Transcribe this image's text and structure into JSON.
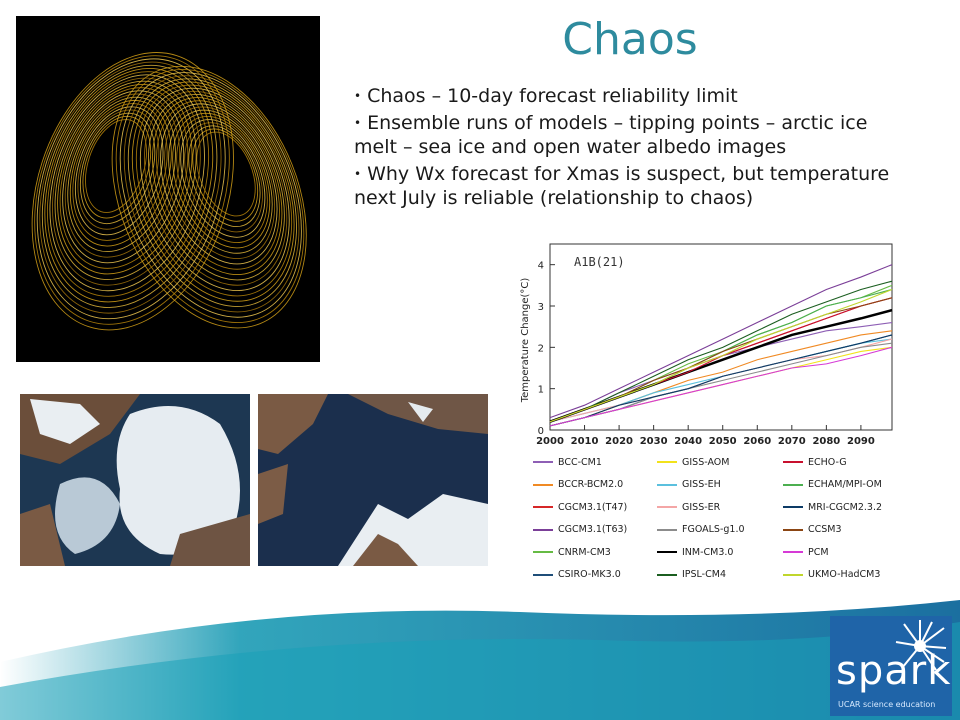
{
  "slide": {
    "title": "Chaos",
    "bullets": [
      "Chaos – 10-day forecast reliability limit",
      "Ensemble runs of models – tipping points – arctic ice melt – sea ice and open water albedo images",
      "Why Wx forecast for Xmas is suspect, but temperature next July is reliable (relationship to chaos)"
    ]
  },
  "chart_data": {
    "type": "line",
    "title": "A1B(21)",
    "xlabel": "",
    "ylabel": "Temperature Change(°C)",
    "xlim": [
      2000,
      2099
    ],
    "ylim": [
      0,
      4.5
    ],
    "x_ticks": [
      "2000",
      "2010",
      "2020",
      "2030",
      "2040",
      "2050",
      "2060",
      "2070",
      "2080",
      "2090"
    ],
    "y_ticks": [
      "0",
      "1",
      "2",
      "3",
      "4"
    ],
    "x": [
      2000,
      2010,
      2020,
      2030,
      2040,
      2050,
      2060,
      2070,
      2080,
      2090,
      2099
    ],
    "series": [
      {
        "name": "BCC-CM1",
        "color": "#8e5fb5",
        "values": [
          0.2,
          0.5,
          0.9,
          1.2,
          1.5,
          1.8,
          2.0,
          2.2,
          2.4,
          2.5,
          2.6
        ]
      },
      {
        "name": "BCCR-BCM2.0",
        "color": "#f08a24",
        "values": [
          0.1,
          0.3,
          0.6,
          0.9,
          1.2,
          1.4,
          1.7,
          1.9,
          2.1,
          2.3,
          2.4
        ]
      },
      {
        "name": "CGCM3.1(T47)",
        "color": "#d62728",
        "values": [
          0.2,
          0.5,
          0.8,
          1.1,
          1.5,
          1.8,
          2.1,
          2.4,
          2.7,
          3.0,
          3.2
        ]
      },
      {
        "name": "CGCM3.1(T63)",
        "color": "#7b3f98",
        "values": [
          0.3,
          0.6,
          1.0,
          1.4,
          1.8,
          2.2,
          2.6,
          3.0,
          3.4,
          3.7,
          4.0
        ]
      },
      {
        "name": "CNRM-CM3",
        "color": "#66bb44",
        "values": [
          0.2,
          0.5,
          0.8,
          1.2,
          1.6,
          1.9,
          2.3,
          2.6,
          3.0,
          3.2,
          3.5
        ]
      },
      {
        "name": "CSIRO-MK3.0",
        "color": "#1f4e79",
        "values": [
          0.1,
          0.3,
          0.5,
          0.8,
          1.0,
          1.3,
          1.5,
          1.7,
          1.9,
          2.1,
          2.3
        ]
      },
      {
        "name": "GISS-AOM",
        "color": "#f2e21b",
        "values": [
          0.1,
          0.3,
          0.5,
          0.7,
          0.9,
          1.1,
          1.3,
          1.5,
          1.7,
          1.9,
          2.0
        ]
      },
      {
        "name": "GISS-EH",
        "color": "#5bc0de",
        "values": [
          0.2,
          0.4,
          0.6,
          0.9,
          1.1,
          1.3,
          1.5,
          1.7,
          1.9,
          2.1,
          2.2
        ]
      },
      {
        "name": "GISS-ER",
        "color": "#f4a6a6",
        "values": [
          0.2,
          0.4,
          0.6,
          0.8,
          1.0,
          1.3,
          1.5,
          1.7,
          1.8,
          2.0,
          2.2
        ]
      },
      {
        "name": "FGOALS-g1.0",
        "color": "#8c8c8c",
        "values": [
          0.1,
          0.3,
          0.5,
          0.8,
          1.0,
          1.2,
          1.4,
          1.6,
          1.8,
          2.0,
          2.1
        ]
      },
      {
        "name": "INM-CM3.0",
        "color": "#000000",
        "values": [
          0.2,
          0.5,
          0.8,
          1.1,
          1.4,
          1.7,
          2.0,
          2.3,
          2.5,
          2.7,
          2.9
        ]
      },
      {
        "name": "IPSL-CM4",
        "color": "#1b5e20",
        "values": [
          0.2,
          0.5,
          0.9,
          1.3,
          1.7,
          2.0,
          2.4,
          2.8,
          3.1,
          3.4,
          3.6
        ]
      },
      {
        "name": "ECHO-G",
        "color": "#c8102e",
        "values": [
          0.2,
          0.5,
          0.8,
          1.1,
          1.4,
          1.8,
          2.1,
          2.4,
          2.7,
          3.0,
          3.2
        ]
      },
      {
        "name": "ECHAM/MPI-OM",
        "color": "#4caf50",
        "values": [
          0.2,
          0.5,
          0.8,
          1.1,
          1.5,
          1.9,
          2.3,
          2.6,
          3.0,
          3.2,
          3.4
        ]
      },
      {
        "name": "MRI-CGCM2.3.2",
        "color": "#0d3b66",
        "values": [
          0.1,
          0.3,
          0.6,
          0.8,
          1.0,
          1.3,
          1.5,
          1.7,
          1.9,
          2.1,
          2.3
        ]
      },
      {
        "name": "CCSM3",
        "color": "#8b4513",
        "values": [
          0.2,
          0.5,
          0.8,
          1.2,
          1.5,
          1.9,
          2.2,
          2.5,
          2.8,
          3.0,
          3.2
        ]
      },
      {
        "name": "PCM",
        "color": "#d63ad6",
        "values": [
          0.1,
          0.3,
          0.5,
          0.7,
          0.9,
          1.1,
          1.3,
          1.5,
          1.6,
          1.8,
          2.0
        ]
      },
      {
        "name": "UKMO-HadCM3",
        "color": "#c0d62c",
        "values": [
          0.2,
          0.5,
          0.8,
          1.1,
          1.5,
          1.8,
          2.2,
          2.5,
          2.8,
          3.1,
          3.4
        ]
      }
    ]
  },
  "logo": {
    "word": "spark",
    "sub": "UCAR science education",
    "brand_color": "#1f64a8"
  },
  "colors": {
    "title": "#2e8b9e",
    "footer_band": "#1aa0b8"
  }
}
